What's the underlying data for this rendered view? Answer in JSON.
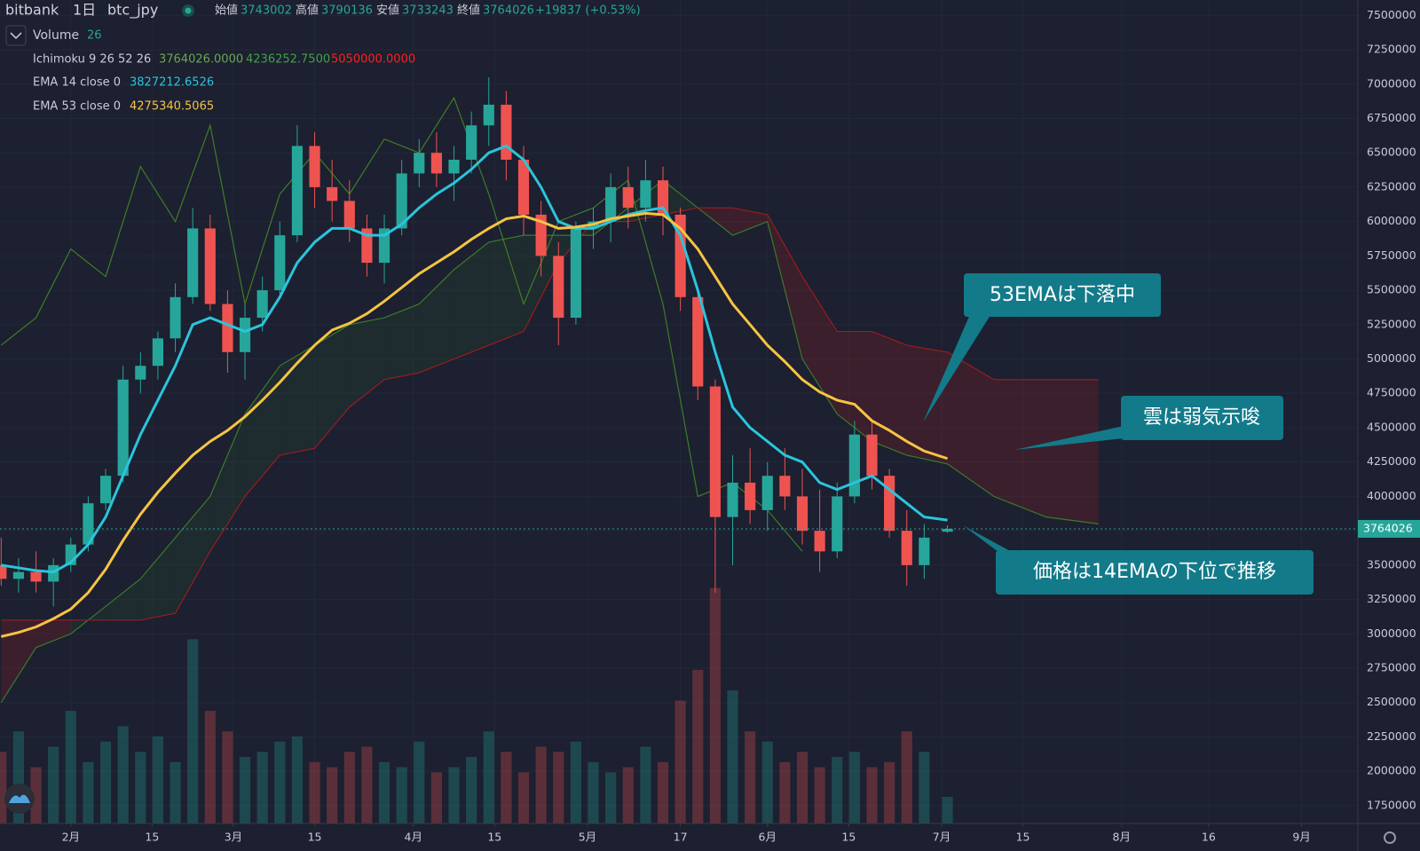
{
  "chart_data": {
    "type": "candlestick",
    "header": {
      "exchange": "bitbank",
      "interval": "1日",
      "symbol": "btc_jpy",
      "ohlc_labels": [
        "始値",
        "高値",
        "安値",
        "終値"
      ],
      "change": "+19837 (+0.53%)"
    },
    "xlim": [
      18.8,
      252.7
    ],
    "xticks": [
      {
        "value": 31,
        "label": "2月"
      },
      {
        "value": 45,
        "label": "15"
      },
      {
        "value": 59,
        "label": "3月"
      },
      {
        "value": 73,
        "label": "15"
      },
      {
        "value": 90,
        "label": "4月"
      },
      {
        "value": 104,
        "label": "15"
      },
      {
        "value": 120,
        "label": "5月"
      },
      {
        "value": 136,
        "label": "17"
      },
      {
        "value": 151,
        "label": "6月"
      },
      {
        "value": 165,
        "label": "15"
      },
      {
        "value": 181,
        "label": "7月"
      },
      {
        "value": 195,
        "label": "15"
      },
      {
        "value": 212,
        "label": "8月"
      },
      {
        "value": 227,
        "label": "16"
      },
      {
        "value": 243,
        "label": "9月"
      }
    ],
    "ylim": [
      1620000,
      7612000
    ],
    "yticks": [
      1750000,
      2000000,
      2250000,
      2500000,
      2750000,
      3000000,
      3250000,
      3500000,
      3750000,
      4000000,
      4250000,
      4500000,
      4750000,
      5000000,
      5250000,
      5500000,
      5750000,
      6000000,
      6250000,
      6500000,
      6750000,
      7000000,
      7250000,
      7500000
    ],
    "grid": true,
    "up_color": "#26a69a",
    "down_color": "#ef5350",
    "x": [
      19,
      22,
      25,
      28,
      31,
      34,
      37,
      40,
      43,
      46,
      49,
      52,
      55,
      58,
      61,
      64,
      67,
      70,
      73,
      76,
      79,
      82,
      85,
      88,
      91,
      94,
      97,
      100,
      103,
      106,
      109,
      112,
      115,
      118,
      121,
      124,
      127,
      130,
      133,
      136,
      139,
      142,
      145,
      148,
      151,
      154,
      157,
      160,
      163,
      166,
      169,
      172,
      175,
      178,
      182
    ],
    "open": [
      3500000,
      3400000,
      3450000,
      3380000,
      3500000,
      3650000,
      3950000,
      4150000,
      4850000,
      4950000,
      5150000,
      5450000,
      5950000,
      5400000,
      5050000,
      5300000,
      5500000,
      5900000,
      6550000,
      6250000,
      6150000,
      5950000,
      5700000,
      5950000,
      6350000,
      6500000,
      6350000,
      6450000,
      6700000,
      6850000,
      6450000,
      6050000,
      5750000,
      5300000,
      5950000,
      6000000,
      6250000,
      6100000,
      6300000,
      6050000,
      5450000,
      4800000,
      3850000,
      4100000,
      3900000,
      4150000,
      4000000,
      3750000,
      3600000,
      4000000,
      4450000,
      4150000,
      3750000,
      3500000,
      3743002
    ],
    "high": [
      3700000,
      3550000,
      3600000,
      3550000,
      3700000,
      4000000,
      4200000,
      4950000,
      5050000,
      5200000,
      5550000,
      6100000,
      6050000,
      5500000,
      5400000,
      5600000,
      6000000,
      6700000,
      6650000,
      6450000,
      6300000,
      6050000,
      6050000,
      6450000,
      6600000,
      6650000,
      6550000,
      6800000,
      7050000,
      6950000,
      6550000,
      6150000,
      5850000,
      6000000,
      6100000,
      6350000,
      6400000,
      6450000,
      6400000,
      6100000,
      5500000,
      4850000,
      4300000,
      4350000,
      4250000,
      4350000,
      4200000,
      4050000,
      4100000,
      4550000,
      4550000,
      4200000,
      3900000,
      3800000,
      3790136
    ],
    "low": [
      3350000,
      3300000,
      3300000,
      3200000,
      3450000,
      3600000,
      3900000,
      4100000,
      4750000,
      4850000,
      5050000,
      5400000,
      5350000,
      4900000,
      4850000,
      5200000,
      5450000,
      5850000,
      6100000,
      6000000,
      5850000,
      5600000,
      5550000,
      5900000,
      6250000,
      6250000,
      6150000,
      6350000,
      6550000,
      6300000,
      5900000,
      5600000,
      5100000,
      5250000,
      5800000,
      5850000,
      5950000,
      6000000,
      5900000,
      5350000,
      4700000,
      3300000,
      3500000,
      3800000,
      3750000,
      3900000,
      3650000,
      3450000,
      3550000,
      3950000,
      4050000,
      3700000,
      3350000,
      3400000,
      3733243
    ],
    "close": [
      3400000,
      3450000,
      3380000,
      3500000,
      3650000,
      3950000,
      4150000,
      4850000,
      4950000,
      5150000,
      5450000,
      5950000,
      5400000,
      5050000,
      5300000,
      5500000,
      5900000,
      6550000,
      6250000,
      6150000,
      5950000,
      5700000,
      5950000,
      6350000,
      6500000,
      6350000,
      6450000,
      6700000,
      6850000,
      6450000,
      6050000,
      5750000,
      5300000,
      5950000,
      6000000,
      6250000,
      6100000,
      6300000,
      6050000,
      5450000,
      4800000,
      3850000,
      4100000,
      3900000,
      4150000,
      4000000,
      3750000,
      3600000,
      4000000,
      4450000,
      4150000,
      3750000,
      3500000,
      3700000,
      3764026
    ],
    "volume": {
      "name": "Volume",
      "vlim": [
        0,
        260
      ],
      "values": [
        70,
        90,
        55,
        75,
        110,
        60,
        80,
        95,
        70,
        85,
        60,
        180,
        110,
        90,
        65,
        70,
        80,
        85,
        60,
        55,
        70,
        75,
        60,
        55,
        80,
        50,
        55,
        65,
        90,
        70,
        50,
        75,
        70,
        80,
        60,
        50,
        55,
        75,
        60,
        120,
        150,
        230,
        130,
        90,
        80,
        60,
        70,
        55,
        65,
        70,
        55,
        60,
        90,
        70,
        26
      ]
    },
    "series": [
      {
        "name": "EMA 14 close 0",
        "color": "#2bc4dc",
        "values": [
          3500000,
          3480000,
          3460000,
          3450000,
          3520000,
          3650000,
          3850000,
          4150000,
          4450000,
          4700000,
          4950000,
          5250000,
          5300000,
          5250000,
          5200000,
          5250000,
          5450000,
          5700000,
          5850000,
          5950000,
          5950000,
          5900000,
          5900000,
          5980000,
          6100000,
          6200000,
          6280000,
          6380000,
          6500000,
          6550000,
          6450000,
          6250000,
          6000000,
          5950000,
          5950000,
          6000000,
          6050000,
          6080000,
          6100000,
          5900000,
          5500000,
          5050000,
          4650000,
          4500000,
          4400000,
          4300000,
          4250000,
          4100000,
          4050000,
          4100000,
          4150000,
          4050000,
          3950000,
          3850000,
          3827212.6526
        ]
      },
      {
        "name": "EMA 53 close 0",
        "color": "#f6c343",
        "values": [
          2980000,
          3010000,
          3050000,
          3110000,
          3180000,
          3300000,
          3470000,
          3680000,
          3870000,
          4030000,
          4170000,
          4300000,
          4400000,
          4480000,
          4580000,
          4700000,
          4830000,
          4970000,
          5100000,
          5210000,
          5260000,
          5330000,
          5420000,
          5520000,
          5620000,
          5700000,
          5780000,
          5870000,
          5950000,
          6020000,
          6040000,
          6000000,
          5950000,
          5960000,
          5980000,
          6020000,
          6040000,
          6060000,
          6050000,
          5950000,
          5800000,
          5600000,
          5400000,
          5250000,
          5100000,
          4980000,
          4850000,
          4760000,
          4700000,
          4670000,
          4550000,
          4480000,
          4400000,
          4330000,
          4275340.5065
        ]
      }
    ],
    "ichimoku": {
      "name": "Ichimoku 9 26 52 26",
      "values": [
        3764026,
        4236252.75,
        5050000
      ],
      "value_labels": [
        "3764026.0000",
        "4236252.7500",
        "5050000.0000"
      ],
      "colors": [
        "#6aa84f",
        "#43a047",
        "#ff1f1f"
      ],
      "span_a": {
        "color": "#3c7a2a",
        "x": [
          19,
          25,
          31,
          37,
          43,
          49,
          55,
          61,
          67,
          73,
          79,
          85,
          91,
          97,
          103,
          109,
          115,
          121,
          127,
          133,
          139,
          145,
          151,
          157,
          163,
          169,
          175,
          182,
          190,
          199,
          208
        ],
        "values": [
          2500000,
          2900000,
          3000000,
          3200000,
          3400000,
          3700000,
          4000000,
          4600000,
          4950000,
          5100000,
          5250000,
          5300000,
          5400000,
          5650000,
          5850000,
          5900000,
          5900000,
          5900000,
          6100000,
          6300000,
          6100000,
          5900000,
          6000000,
          5000000,
          4600000,
          4400000,
          4300000,
          4236252.75,
          4000000,
          3850000,
          3800000
        ]
      },
      "span_b": {
        "color": "#9b1c1c",
        "x": [
          19,
          25,
          31,
          37,
          43,
          49,
          55,
          61,
          67,
          73,
          79,
          85,
          91,
          97,
          103,
          109,
          115,
          121,
          127,
          133,
          139,
          145,
          151,
          157,
          163,
          169,
          175,
          182,
          190,
          199,
          208
        ],
        "values": [
          3100000,
          3100000,
          3100000,
          3100000,
          3100000,
          3150000,
          3600000,
          4000000,
          4300000,
          4350000,
          4650000,
          4850000,
          4900000,
          5000000,
          5100000,
          5200000,
          5700000,
          6000000,
          6000000,
          6050000,
          6100000,
          6100000,
          6050000,
          5600000,
          5200000,
          5200000,
          5100000,
          5050000,
          4850000,
          4850000,
          4850000
        ]
      },
      "lagging": {
        "color": "#3f7d26",
        "x": [
          19,
          25,
          31,
          37,
          43,
          49,
          55,
          61,
          67,
          73,
          79,
          85,
          91,
          97,
          103,
          109,
          115,
          121,
          127,
          133,
          139,
          145,
          151,
          157
        ],
        "values": [
          5100000,
          5300000,
          5800000,
          5600000,
          6400000,
          6000000,
          6700000,
          5400000,
          6200000,
          6500000,
          6200000,
          6600000,
          6500000,
          6900000,
          6200000,
          5400000,
          6000000,
          6100000,
          6300000,
          5400000,
          4000000,
          4100000,
          3900000,
          3600000
        ]
      }
    },
    "annotations": [
      "53EMAは下落中",
      "雲は弱気示唆",
      "価格は14EMAの下位で推移"
    ]
  }
}
